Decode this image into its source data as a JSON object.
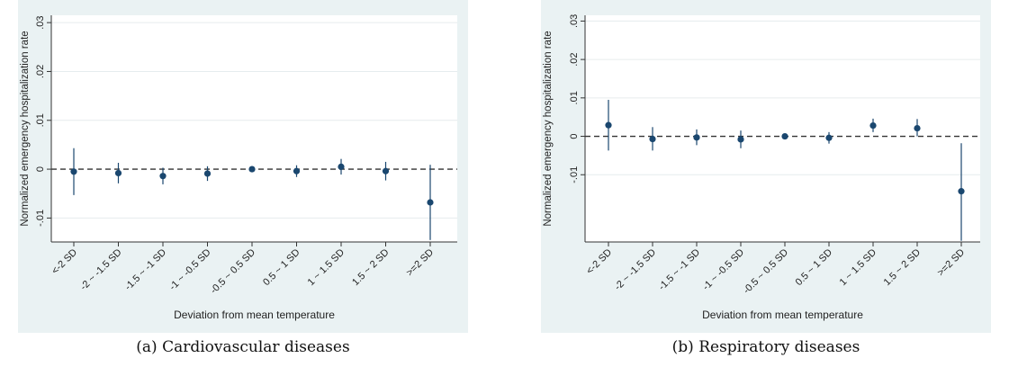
{
  "panels": [
    {
      "caption": "(a) Cardiovascular diseases",
      "chart_data": {
        "type": "scatter",
        "xlabel": "Deviation from mean temperature",
        "ylabel": "Normalized emergency hospitalization rate",
        "categories": [
          "<-2 SD",
          "-2 ~ -1.5 SD",
          "-1.5 ~ -1 SD",
          "-1 ~ -0.5 SD",
          "-0.5 ~ 0.5 SD",
          "0.5 ~ 1 SD",
          "1 ~ 1.5 SD",
          "1.5 ~ 2 SD",
          ">=2 SD"
        ],
        "values": [
          -0.0005,
          -0.0008,
          -0.0014,
          -0.0009,
          0.0,
          -0.0004,
          0.0005,
          -0.0004,
          -0.0068
        ],
        "ci_low": [
          -0.0053,
          -0.0029,
          -0.0031,
          -0.0024,
          0.0,
          -0.0016,
          -0.0011,
          -0.0023,
          -0.0145
        ],
        "ci_high": [
          0.0043,
          0.0013,
          0.0003,
          0.0006,
          0.0,
          0.0008,
          0.0021,
          0.0015,
          0.0009
        ],
        "yticks": [
          -0.01,
          0,
          0.01,
          0.02,
          0.03
        ],
        "ytick_labels": [
          "-.01",
          "0",
          ".01",
          ".02",
          ".03"
        ],
        "ylim": [
          -0.0149,
          0.0315
        ],
        "reference_line": 0,
        "grid": true
      }
    },
    {
      "caption": "(b) Respiratory diseases",
      "chart_data": {
        "type": "scatter",
        "xlabel": "Deviation from mean temperature",
        "ylabel": "Normalized emergency hospitalization rate",
        "categories": [
          "<-2 SD",
          "-2 ~ -1.5 SD",
          "-1.5 ~ -1 SD",
          "-1 ~ -0.5 SD",
          "-0.5 ~ 0.5 SD",
          "0.5 ~ 1 SD",
          "1 ~ 1.5 SD",
          "1.5 ~ 2 SD",
          ">=2 SD"
        ],
        "values": [
          0.0029,
          -0.0007,
          -0.0003,
          -0.0008,
          0.0,
          -0.0004,
          0.0028,
          0.0021,
          -0.0143
        ],
        "ci_low": [
          -0.0037,
          -0.0037,
          -0.0023,
          -0.0031,
          0.0,
          -0.0019,
          0.0011,
          0.0,
          -0.0272
        ],
        "ci_high": [
          0.0095,
          0.0024,
          0.0018,
          0.0015,
          0.0,
          0.0011,
          0.0046,
          0.0045,
          -0.0018
        ],
        "yticks": [
          -0.01,
          0,
          0.01,
          0.02,
          0.03
        ],
        "ytick_labels": [
          "-.01",
          "0",
          ".01",
          ".02",
          ".03"
        ],
        "ylim": [
          -0.0275,
          0.0315
        ],
        "reference_line": 0,
        "grid": true
      }
    }
  ],
  "colors": {
    "background": "#eaf2f3",
    "plot": "#ffffff",
    "marker": "#1a476f",
    "grid": "#e6ecee"
  }
}
